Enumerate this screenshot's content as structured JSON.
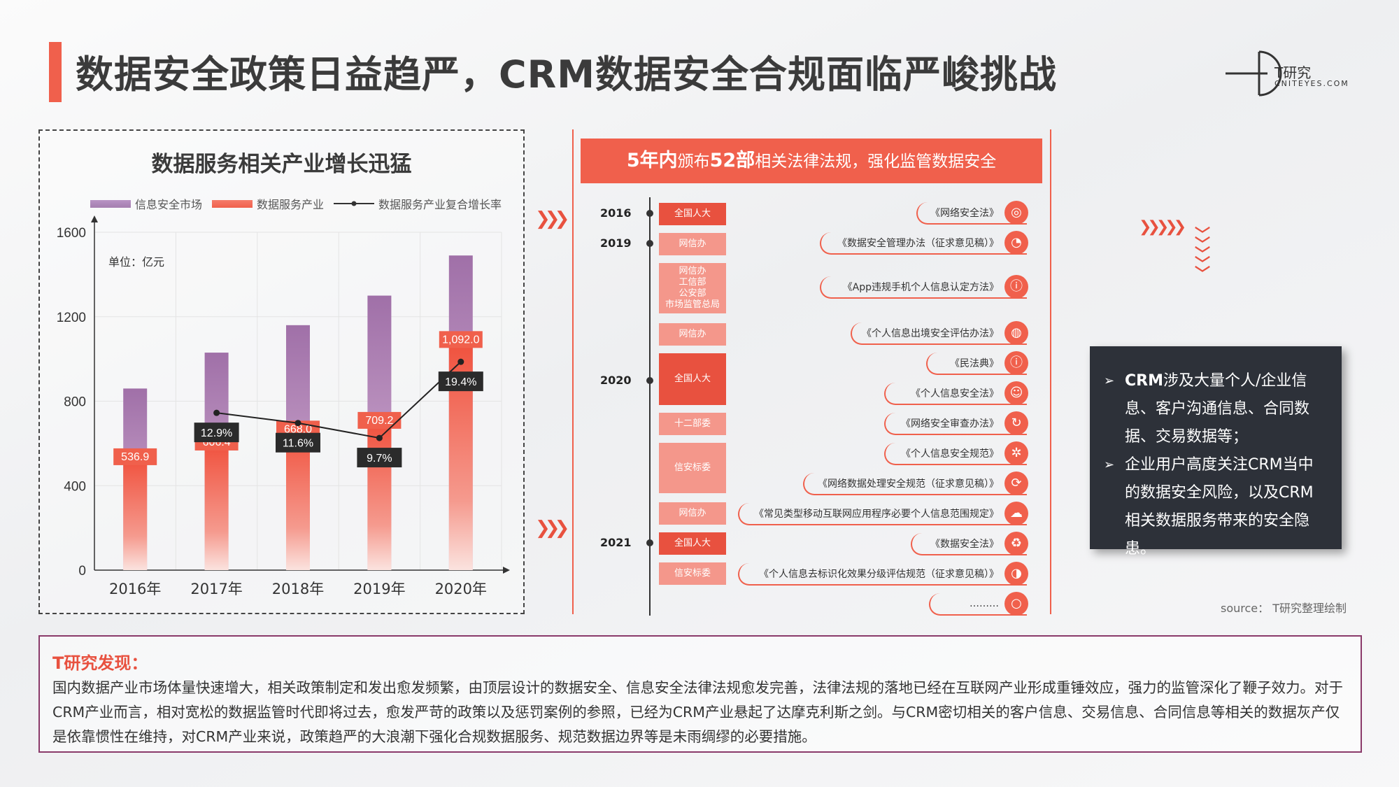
{
  "title": "数据安全政策日益趋严，CRM数据安全合规面临严峻挑战",
  "logo": {
    "main": "T研究",
    "sub": "CNITEYES.COM"
  },
  "chart_panel": {
    "title": "数据服务相关产业增长迅猛",
    "unit": "单位：亿元",
    "legend": [
      "信息安全市场",
      "数据服务产业",
      "数据服务产业复合增长率"
    ]
  },
  "chart_data": {
    "type": "bar",
    "categories": [
      "2016年",
      "2017年",
      "2018年",
      "2019年",
      "2020年"
    ],
    "series": [
      {
        "name": "信息安全市场",
        "values": [
          860,
          1030,
          1160,
          1300,
          1490
        ],
        "color": "#a57eb0"
      },
      {
        "name": "数据服务产业",
        "values": [
          536.9,
          606.4,
          668.0,
          709.2,
          1092.0
        ],
        "labels": [
          "536.9",
          "606.4",
          "668.0",
          "709.2",
          "1,092.0"
        ],
        "color": "#f0604c"
      },
      {
        "name": "数据服务产业复合增长率",
        "type": "line",
        "x": [
          "2017年",
          "2018年",
          "2019年",
          "2020年"
        ],
        "values": [
          12.9,
          11.6,
          9.7,
          19.4
        ],
        "labels": [
          "12.9%",
          "11.6%",
          "9.7%",
          "19.4%"
        ]
      }
    ],
    "y_ticks": [
      "0",
      "400",
      "800",
      "1200",
      "1600"
    ],
    "ylim": [
      0,
      1600
    ],
    "grid": true
  },
  "timeline": {
    "header_parts": [
      "5年内",
      "颁布",
      "52部",
      "相关法律法规，强化监管数据安全"
    ],
    "years": [
      "2016",
      "2019",
      "2020",
      "2021"
    ],
    "orgs": [
      "全国人大",
      "网信办",
      "网信办\n工信部\n公安部\n市场监管总局",
      "网信办",
      "全国人大",
      "十二部委",
      "信安标委",
      "网信办",
      "全国人大",
      "信安标委"
    ],
    "laws": [
      "《网络安全法》",
      "《数据安全管理办法（征求意见稿）》",
      "《App违规手机个人信息认定方法》",
      "《个人信息出境安全评估办法》",
      "《民法典》",
      "《个人信息安全法》",
      "《网络安全审查办法》",
      "《个人信息安全规范》",
      "《网络数据处理安全规范（征求意见稿）》",
      "《常见类型移动互联网应用程序必要个人信息范围规定》",
      "《数据安全法》",
      "《个人信息去标识化效果分级评估规范（征求意见稿）》",
      "………"
    ]
  },
  "sidebar": {
    "points": [
      {
        "bold": "CRM",
        "text": "涉及大量个人/企业信息、客户沟通信息、合同数据、交易数据等；"
      },
      {
        "bold": "",
        "text": "企业用户高度关注CRM当中的数据安全风险，以及CRM相关数据服务带来的安全隐患。"
      }
    ],
    "source": "source： T研究整理绘制"
  },
  "finding": {
    "title": "T研究发现：",
    "text": "国内数据产业市场体量快速增大，相关政策制定和发出愈发频繁，由顶层设计的数据安全、信息安全法律法规愈发完善，法律法规的落地已经在互联网产业形成重锤效应，强力的监管深化了鞭子效力。对于CRM产业而言，相对宽松的数据监管时代即将过去，愈发严苛的政策以及惩罚案例的参照，已经为CRM产业悬起了达摩克利斯之剑。与CRM密切相关的客户信息、交易信息、合同信息等相关的数据灰产仅是依靠惯性在维持，对CRM产业来说，政策趋严的大浪潮下强化合规数据服务、规范数据边界等是未雨绸缪的必要措施。"
  }
}
